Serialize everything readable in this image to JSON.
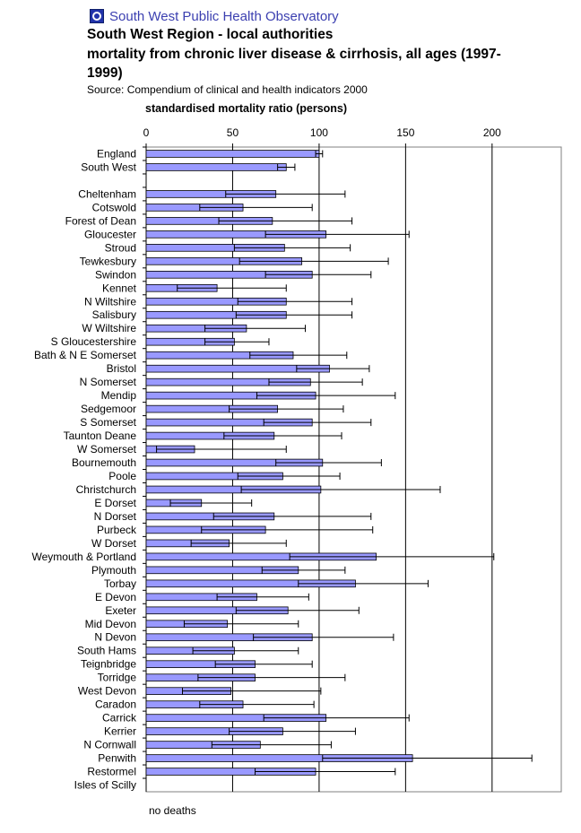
{
  "header": {
    "org_name": "South West Public Health Observatory",
    "logo_icon": "swpho-logo-icon",
    "title_lines": [
      "South West Region - local authorities",
      "mortality from chronic liver disease & cirrhosis, all ages (1997-",
      "1999)"
    ],
    "source": "Source: Compendium of clinical and health indicators 2000"
  },
  "footnote": "no deaths",
  "chart_data": {
    "type": "bar",
    "orientation": "horizontal",
    "xlabel": "standardised mortality ratio (persons)",
    "xlim": [
      0,
      240
    ],
    "xticks": [
      0,
      50,
      100,
      150,
      200
    ],
    "grid": true,
    "bar_color": "#9999ff",
    "categories": [
      "England",
      "South West",
      "",
      "Cheltenham",
      "Cotswold",
      "Forest of Dean",
      "Gloucester",
      "Stroud",
      "Tewkesbury",
      "Swindon",
      "Kennet",
      "N Wiltshire",
      "Salisbury",
      "W Wiltshire",
      "S Gloucestershire",
      "Bath & N E Somerset",
      "Bristol",
      "N Somerset",
      "Mendip",
      "Sedgemoor",
      "S Somerset",
      "Taunton Deane",
      "W Somerset",
      "Bournemouth",
      "Poole",
      "Christchurch",
      "E Dorset",
      "N Dorset",
      "Purbeck",
      "W Dorset",
      "Weymouth & Portland",
      "Plymouth",
      "Torbay",
      "E Devon",
      "Exeter",
      "Mid Devon",
      "N Devon",
      "South Hams",
      "Teignbridge",
      "Torridge",
      "West Devon",
      "Caradon",
      "Carrick",
      "Kerrier",
      "N Cornwall",
      "Penwith",
      "Restormel",
      "Isles of Scilly"
    ],
    "values": [
      100,
      81,
      null,
      75,
      56,
      73,
      104,
      80,
      90,
      96,
      41,
      81,
      81,
      58,
      51,
      85,
      106,
      95,
      98,
      76,
      96,
      74,
      28,
      102,
      79,
      101,
      32,
      74,
      69,
      48,
      133,
      88,
      121,
      64,
      82,
      47,
      96,
      51,
      63,
      63,
      49,
      56,
      104,
      79,
      66,
      154,
      98,
      null
    ],
    "ci_lower": [
      98,
      76,
      null,
      46,
      31,
      42,
      69,
      51,
      54,
      69,
      18,
      53,
      52,
      34,
      34,
      60,
      87,
      71,
      64,
      48,
      68,
      45,
      6,
      75,
      53,
      55,
      14,
      39,
      32,
      26,
      83,
      67,
      88,
      41,
      52,
      22,
      62,
      27,
      40,
      30,
      21,
      31,
      68,
      48,
      38,
      102,
      63,
      null
    ],
    "ci_upper": [
      102,
      86,
      null,
      115,
      96,
      119,
      152,
      118,
      140,
      130,
      81,
      119,
      119,
      92,
      71,
      116,
      129,
      125,
      144,
      114,
      130,
      113,
      81,
      136,
      112,
      170,
      61,
      130,
      131,
      81,
      201,
      115,
      163,
      94,
      123,
      88,
      143,
      88,
      96,
      115,
      101,
      97,
      152,
      121,
      107,
      223,
      144,
      null
    ]
  }
}
